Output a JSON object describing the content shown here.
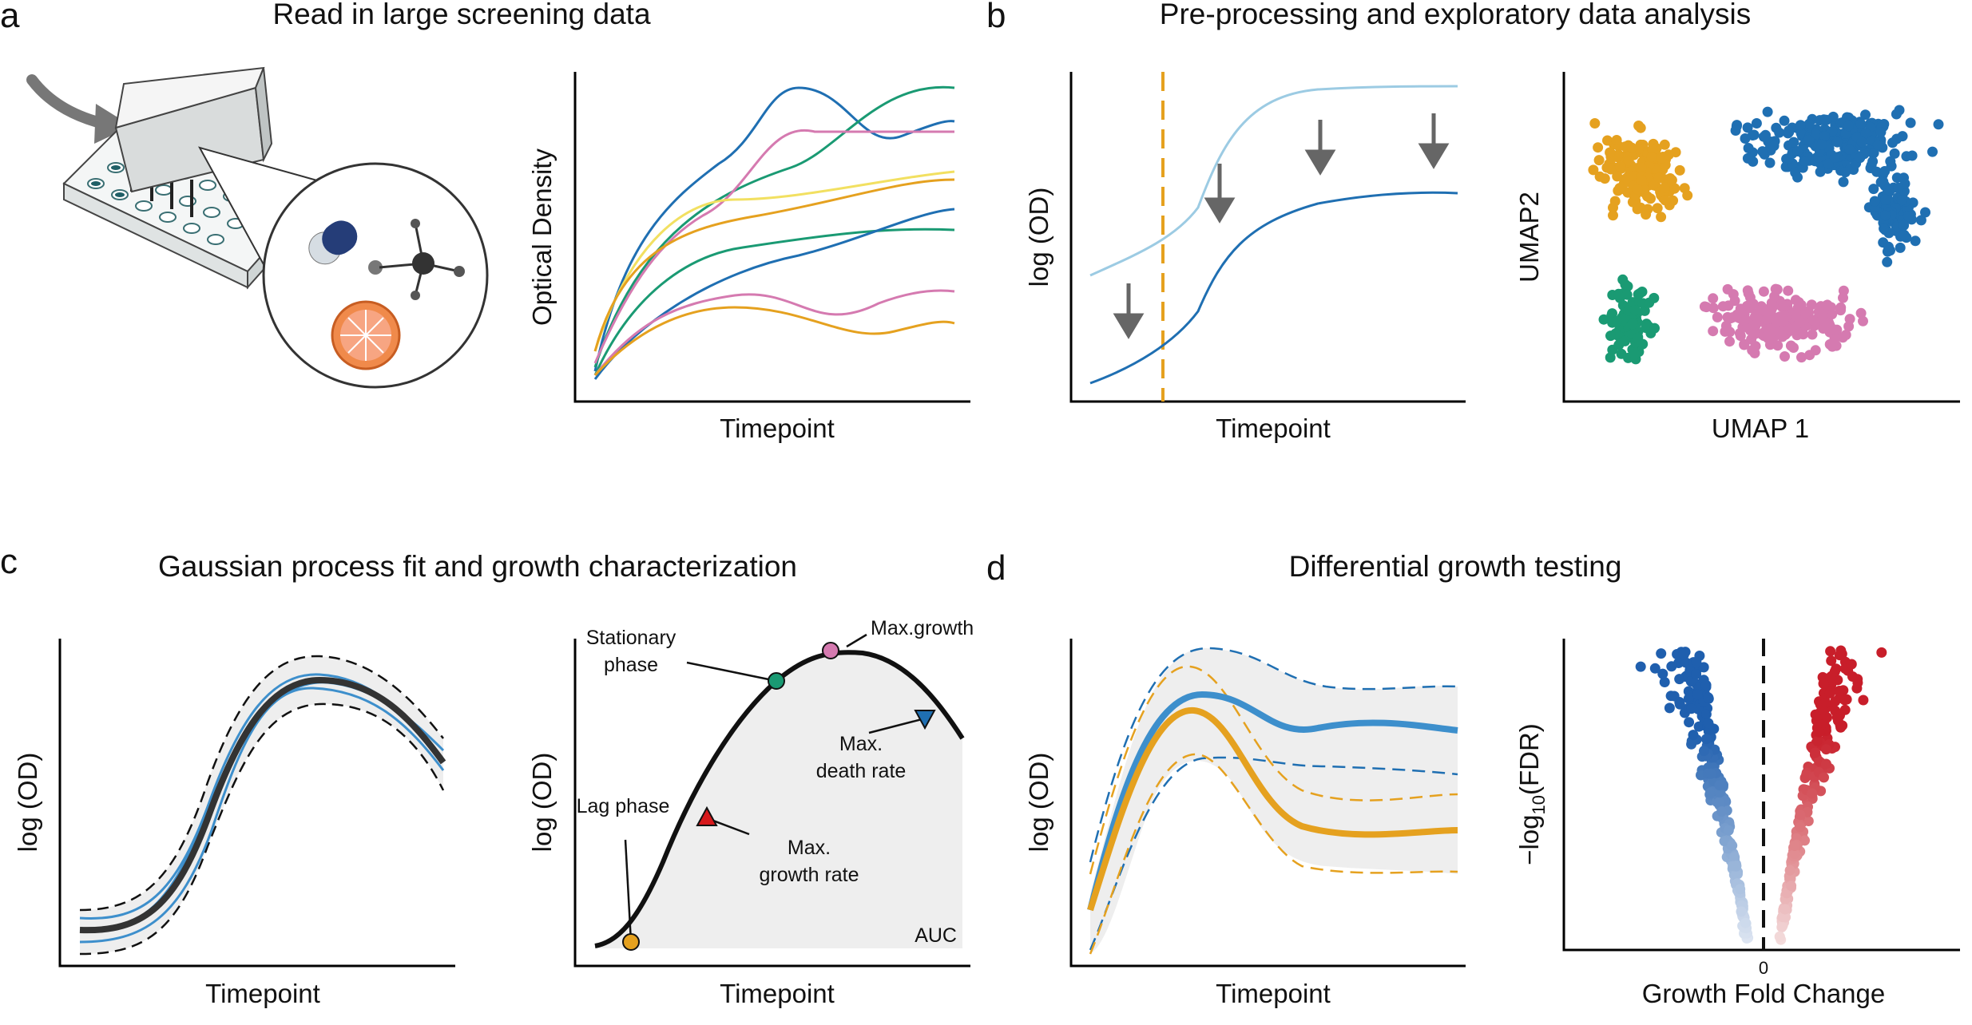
{
  "panels": {
    "a": {
      "letter": "a",
      "title": "Read in large screening data"
    },
    "b": {
      "letter": "b",
      "title": "Pre-processing and exploratory data analysis"
    },
    "c": {
      "letter": "c",
      "title": "Gaussian process fit and growth characterization"
    },
    "d": {
      "letter": "d",
      "title": "Differential growth testing"
    }
  },
  "axes": {
    "a_curves": {
      "xlabel": "Timepoint",
      "ylabel": "Optical Density"
    },
    "b_log": {
      "xlabel": "Timepoint",
      "ylabel": "log (OD)"
    },
    "b_umap": {
      "xlabel": "UMAP 1",
      "ylabel": "UMAP2"
    },
    "c_fit": {
      "xlabel": "Timepoint",
      "ylabel": "log (OD)"
    },
    "c_phases": {
      "xlabel": "Timepoint",
      "ylabel": "log (OD)"
    },
    "d_diff": {
      "xlabel": "Timepoint",
      "ylabel": "log (OD)"
    },
    "d_volcano": {
      "xlabel": "Growth Fold Change",
      "ylabel_prefix": "−log",
      "ylabel_sub": "10",
      "ylabel_suffix": "(FDR)",
      "zero_tick": "0"
    }
  },
  "annotations": {
    "stationary_phase_1": "Stationary",
    "stationary_phase_2": "phase",
    "max_growth": "Max.growth",
    "lag_phase": "Lag phase",
    "max_growth_rate_1": "Max.",
    "max_growth_rate_2": "growth rate",
    "max_death_rate_1": "Max.",
    "max_death_rate_2": "death rate",
    "auc": "AUC"
  },
  "colors": {
    "blue": "#1f6fb2",
    "light_blue": "#9ccbe3",
    "orange": "#e5a11f",
    "green": "#1a9a73",
    "pink": "#d57ab0",
    "yellow": "#f2e061",
    "red": "#d7191c",
    "gray_band": "#eeeeee",
    "arrow_gray": "#666666"
  }
}
